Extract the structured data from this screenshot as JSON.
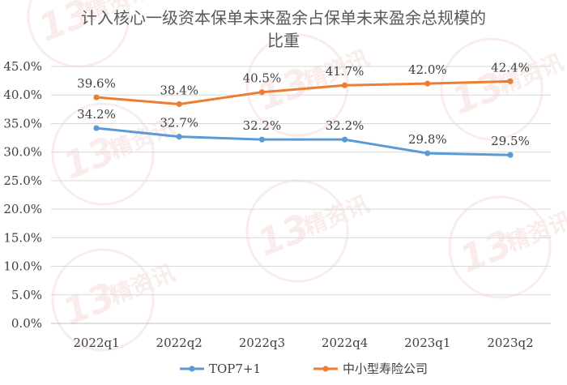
{
  "chart_data": {
    "type": "line",
    "title_line1": "计入核心一级资本保单未来盈余占保单未来盈余总规模的",
    "title_line2": "比重",
    "categories": [
      "2022q1",
      "2022q2",
      "2022q3",
      "2022q4",
      "2023q1",
      "2023q2"
    ],
    "y_ticks": [
      "0.0%",
      "5.0%",
      "10.0%",
      "15.0%",
      "20.0%",
      "25.0%",
      "30.0%",
      "35.0%",
      "40.0%",
      "45.0%"
    ],
    "ylim": [
      0,
      45
    ],
    "series": [
      {
        "name": "TOP7+1",
        "color": "#5b9bd5",
        "values": [
          34.2,
          32.7,
          32.2,
          32.2,
          29.8,
          29.5
        ],
        "labels": [
          "34.2%",
          "32.7%",
          "32.2%",
          "32.2%",
          "29.8%",
          "29.5%"
        ]
      },
      {
        "name": "中小型寿险公司",
        "color": "#ed7d31",
        "values": [
          39.6,
          38.4,
          40.5,
          41.7,
          42.0,
          42.4
        ],
        "labels": [
          "39.6%",
          "38.4%",
          "40.5%",
          "41.7%",
          "42.0%",
          "42.4%"
        ]
      }
    ],
    "grid": true,
    "legend_position": "bottom"
  },
  "watermark": {
    "number": "13",
    "text": "精资讯",
    "color": "#c0392b"
  }
}
